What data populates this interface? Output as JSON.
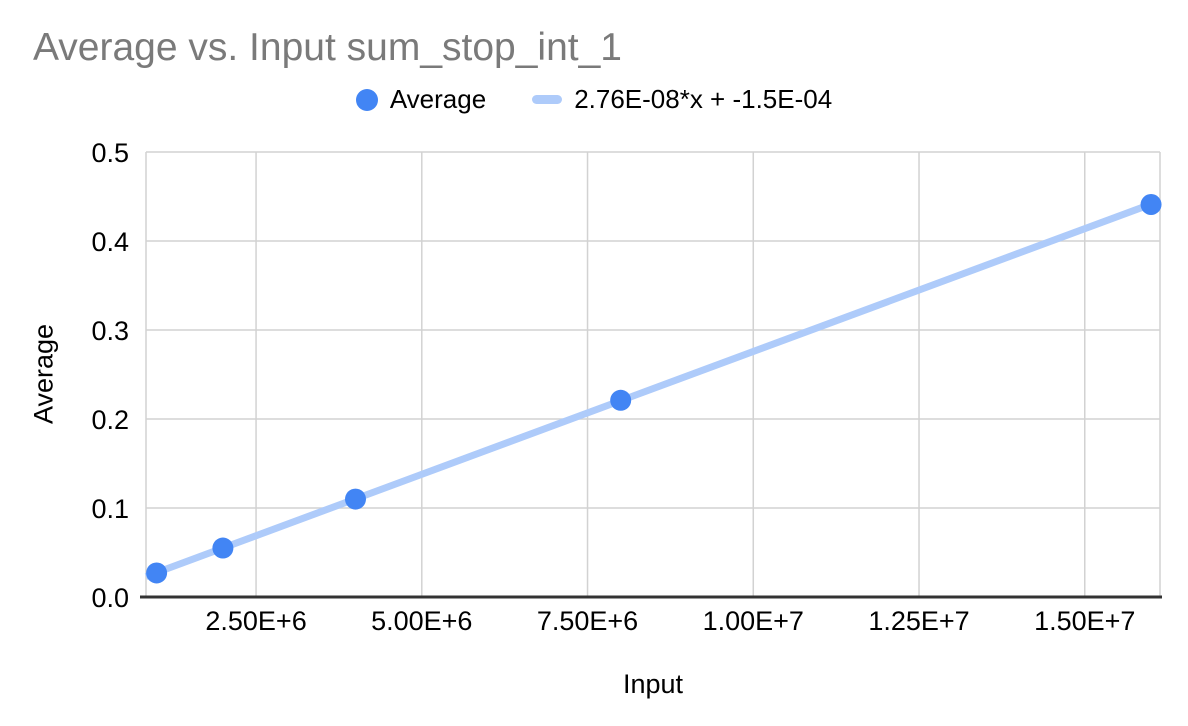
{
  "title": "Average vs. Input sum_stop_int_1",
  "legend": {
    "series_label": "Average",
    "trendline_label": "2.76E-08*x + -1.5E-04"
  },
  "axes": {
    "x_title": "Input",
    "y_title": "Average"
  },
  "colors": {
    "series": "#4285f4",
    "trendline": "#aecbfa",
    "title_text": "#7a7a7a",
    "axis_text": "#000000",
    "gridline": "#d2d2d2",
    "axis_line": "#333333",
    "background": "#ffffff"
  },
  "chart_data": {
    "type": "scatter",
    "title": "Average vs. Input sum_stop_int_1",
    "xlabel": "Input",
    "ylabel": "Average",
    "series": [
      {
        "name": "Average",
        "x": [
          1000000,
          2000000,
          4000000,
          8000000,
          16000000
        ],
        "y": [
          0.027,
          0.055,
          0.11,
          0.221,
          0.441
        ]
      }
    ],
    "trendline": {
      "label": "2.76E-08*x + -1.5E-04",
      "slope": 2.76e-08,
      "intercept": -0.00015
    },
    "x_ticks": [
      {
        "value": 2500000,
        "label": "2.50E+6"
      },
      {
        "value": 5000000,
        "label": "5.00E+6"
      },
      {
        "value": 7500000,
        "label": "7.50E+6"
      },
      {
        "value": 10000000,
        "label": "1.00E+7"
      },
      {
        "value": 12500000,
        "label": "1.25E+7"
      },
      {
        "value": 15000000,
        "label": "1.50E+7"
      }
    ],
    "y_ticks": [
      {
        "value": 0.0,
        "label": "0.0"
      },
      {
        "value": 0.1,
        "label": "0.1"
      },
      {
        "value": 0.2,
        "label": "0.2"
      },
      {
        "value": 0.3,
        "label": "0.3"
      },
      {
        "value": 0.4,
        "label": "0.4"
      },
      {
        "value": 0.5,
        "label": "0.5"
      }
    ],
    "x_range": [
      840000,
      16135000
    ],
    "y_range": [
      0,
      0.5
    ],
    "grid": true,
    "legend_position": "top"
  }
}
